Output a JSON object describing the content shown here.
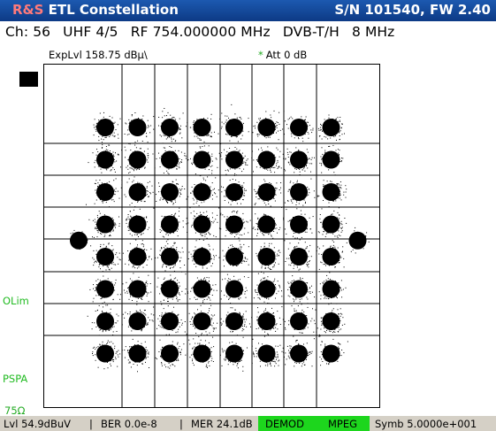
{
  "title_bar": {
    "brand": "R&S",
    "app": " ETL Constellation",
    "serial": "S/N 101540, FW 2.40"
  },
  "info_line": {
    "channel": "Ch:  56",
    "band": "UHF 4/5",
    "rf": "RF 754.000000 MHz",
    "standard": "DVB-T/H",
    "bandwidth": "8 MHz"
  },
  "plot_header": {
    "exp_level": "ExpLvl 158.75 dBµ\\",
    "att_star": "*",
    "att": "Att 0 dB"
  },
  "side_labels": {
    "olim": "OLim",
    "pspa": "PSPA",
    "impedance": "75Ω"
  },
  "status_bar": {
    "level": "Lvl 54.9dBuV",
    "ber": "BER 0.0e-8",
    "mer": "MER 24.1dB",
    "separator": "|",
    "demod": "DEMOD",
    "mpeg": "MPEG",
    "symbol": "Symb 5.0000e+001"
  },
  "constellation": {
    "grid_rows": 8,
    "grid_cols": 8,
    "qam_points_per_axis": 8,
    "pilot_points": 2,
    "dot_color": "#000000"
  },
  "colors": {
    "titlebar": "#0d3a85",
    "brand": "#ff7a7a",
    "indicator_green": "#22bb22",
    "status_ok_bg": "#1dd61d",
    "status_bg": "#d5d0c6"
  }
}
